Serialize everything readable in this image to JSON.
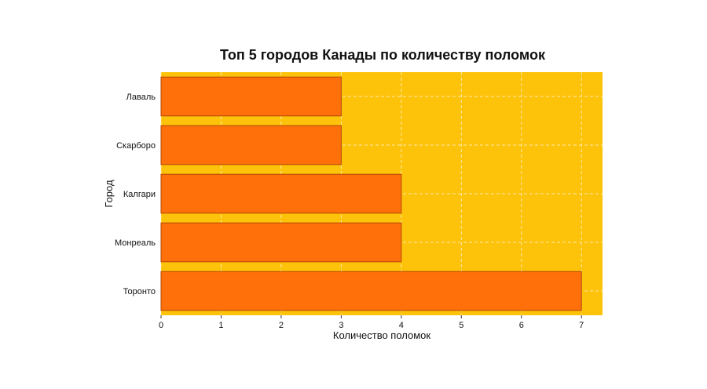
{
  "chart_data": {
    "type": "bar",
    "orientation": "horizontal",
    "title": "Топ 5 городов Канады по количеству поломок",
    "xlabel": "Количество поломок",
    "ylabel": "Город",
    "categories": [
      "Лаваль",
      "Скарборо",
      "Калгари",
      "Монреаль",
      "Торонто"
    ],
    "values": [
      3,
      3,
      4,
      4,
      7
    ],
    "xlim": [
      0,
      7.35
    ],
    "xticks": [
      0,
      1,
      2,
      3,
      4,
      5,
      6,
      7
    ],
    "grid": true,
    "colors": {
      "plot_background": "#FDC20A",
      "bar": "#FF6F0A",
      "bar_edge": "#B04A06",
      "grid": "#FFE9A8"
    }
  }
}
